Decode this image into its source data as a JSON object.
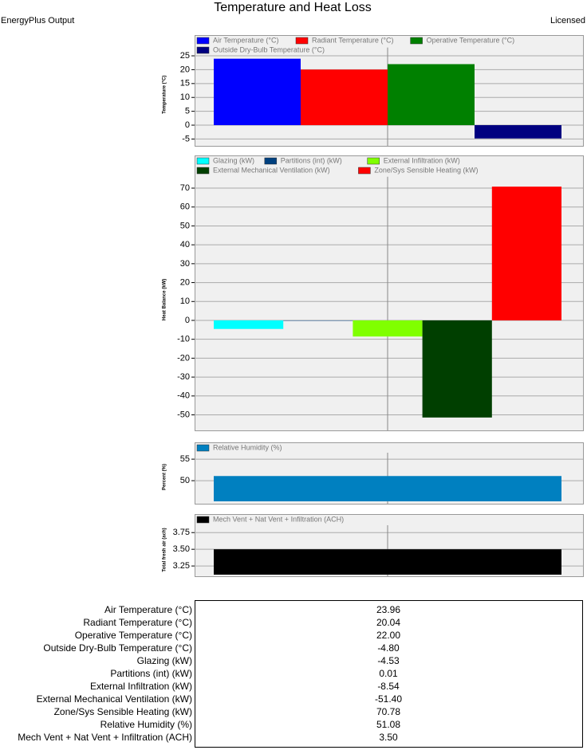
{
  "header": {
    "title": "Temperature and Heat Loss",
    "left": "EnergyPlus Output",
    "right": "Licensed"
  },
  "chart_data": [
    {
      "type": "bar",
      "y_label": "Temperature (°C)",
      "categories": [
        null
      ],
      "series": [
        {
          "name": "Air Temperature (°C)",
          "color": "#0000ff",
          "values": [
            23.96
          ]
        },
        {
          "name": "Radiant Temperature (°C)",
          "color": "#ff0000",
          "values": [
            20.04
          ]
        },
        {
          "name": "Operative Temperature (°C)",
          "color": "#008000",
          "values": [
            22.0
          ]
        },
        {
          "name": "Outside Dry-Bulb Temperature (°C)",
          "color": "#000080",
          "values": [
            -4.8
          ]
        }
      ],
      "ylim": [
        -6,
        28
      ],
      "yticks": [
        -5,
        0,
        5,
        10,
        15,
        20,
        25
      ],
      "grid": true
    },
    {
      "type": "bar",
      "y_label": "Heat Balance (kW)",
      "categories": [
        null
      ],
      "series": [
        {
          "name": "Glazing (kW)",
          "color": "#00ffff",
          "values": [
            -4.53
          ]
        },
        {
          "name": "Partitions (int) (kW)",
          "color": "#00407f",
          "values": [
            0.01
          ]
        },
        {
          "name": "External Infiltration (kW)",
          "color": "#80ff00",
          "values": [
            -8.54
          ]
        },
        {
          "name": "External Mechanical Ventilation (kW)",
          "color": "#003f00",
          "values": [
            -51.4
          ]
        },
        {
          "name": "Zone/Sys Sensible Heating (kW)",
          "color": "#ff0000",
          "values": [
            70.78
          ]
        }
      ],
      "ylim": [
        -54,
        76
      ],
      "yticks": [
        -50,
        -40,
        -30,
        -20,
        -10,
        0,
        10,
        20,
        30,
        40,
        50,
        60,
        70
      ],
      "grid": true
    },
    {
      "type": "bar",
      "y_label": "Percent (%)",
      "categories": [
        null
      ],
      "series": [
        {
          "name": "Relative Humidity (%)",
          "color": "#0080c0",
          "values": [
            51.08
          ]
        }
      ],
      "ylim": [
        45.2,
        56.5
      ],
      "yticks": [
        50,
        55
      ],
      "grid": true
    },
    {
      "type": "bar",
      "y_label": "Total fresh air (ach)",
      "categories": [
        null
      ],
      "series": [
        {
          "name": "Mech Vent + Nat Vent + Infiltration (ACH)",
          "color": "#000000",
          "values": [
            3.5
          ]
        }
      ],
      "ylim": [
        3.12,
        3.86
      ],
      "yticks": [
        3.25,
        {
          "value": 3.5,
          "label": "3.50"
        },
        3.75
      ],
      "grid": true
    }
  ],
  "table": {
    "rows": [
      [
        "Air Temperature (°C)",
        "23.96"
      ],
      [
        "Radiant Temperature (°C)",
        "20.04"
      ],
      [
        "Operative Temperature (°C)",
        "22.00"
      ],
      [
        "Outside Dry-Bulb Temperature (°C)",
        "-4.80"
      ],
      [
        "Glazing (kW)",
        "-4.53"
      ],
      [
        "Partitions (int) (kW)",
        "0.01"
      ],
      [
        "External Infiltration (kW)",
        "-8.54"
      ],
      [
        "External Mechanical Ventilation (kW)",
        "-51.40"
      ],
      [
        "Zone/Sys Sensible Heating (kW)",
        "70.78"
      ],
      [
        "Relative Humidity (%)",
        "51.08"
      ],
      [
        "Mech Vent + Nat Vent + Infiltration (ACH)",
        "3.50"
      ]
    ]
  }
}
